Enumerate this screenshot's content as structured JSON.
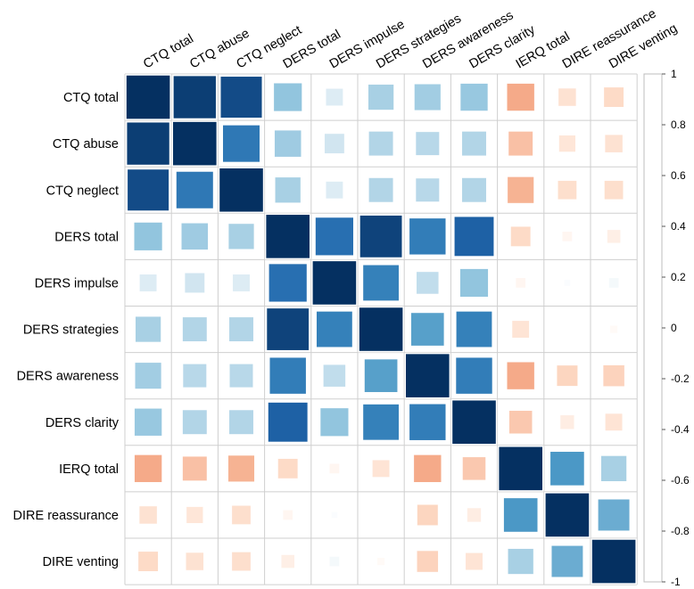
{
  "chart_data": {
    "type": "heatmap",
    "style": "correlation-matrix-squares",
    "variables": [
      "CTQ total",
      "CTQ abuse",
      "CTQ neglect",
      "DERS total",
      "DERS impulse",
      "DERS strategies",
      "DERS awareness",
      "DERS clarity",
      "IERQ total",
      "DIRE reassurance",
      "DIRE venting"
    ],
    "matrix": [
      [
        1.0,
        0.95,
        0.9,
        0.4,
        0.15,
        0.33,
        0.35,
        0.38,
        -0.38,
        -0.16,
        -0.2
      ],
      [
        0.95,
        1.0,
        0.72,
        0.36,
        0.2,
        0.3,
        0.28,
        0.3,
        -0.3,
        -0.14,
        -0.16
      ],
      [
        0.9,
        0.72,
        1.0,
        0.33,
        0.15,
        0.3,
        0.28,
        0.3,
        -0.35,
        -0.18,
        -0.18
      ],
      [
        0.4,
        0.36,
        0.33,
        1.0,
        0.76,
        0.93,
        0.7,
        0.82,
        -0.2,
        -0.05,
        -0.09
      ],
      [
        0.15,
        0.2,
        0.15,
        0.76,
        1.0,
        0.68,
        0.25,
        0.4,
        -0.05,
        0.02,
        0.05
      ],
      [
        0.33,
        0.3,
        0.3,
        0.93,
        0.68,
        1.0,
        0.55,
        0.68,
        -0.15,
        0.0,
        -0.03
      ],
      [
        0.35,
        0.28,
        0.28,
        0.7,
        0.25,
        0.55,
        1.0,
        0.7,
        -0.38,
        -0.22,
        -0.23
      ],
      [
        0.38,
        0.3,
        0.3,
        0.82,
        0.4,
        0.68,
        0.7,
        1.0,
        -0.27,
        -0.1,
        -0.15
      ],
      [
        -0.38,
        -0.3,
        -0.35,
        -0.2,
        -0.05,
        -0.15,
        -0.38,
        -0.27,
        1.0,
        0.58,
        0.33
      ],
      [
        -0.16,
        -0.14,
        -0.18,
        -0.05,
        0.02,
        0.0,
        -0.22,
        -0.1,
        0.58,
        1.0,
        0.5
      ],
      [
        -0.2,
        -0.16,
        -0.18,
        -0.09,
        0.05,
        -0.03,
        -0.23,
        -0.15,
        0.33,
        0.5,
        1.0
      ]
    ],
    "colorbar": {
      "range": [
        -1,
        1
      ],
      "ticks": [
        "1",
        "0.8",
        "0.6",
        "0.4",
        "0.2",
        "0",
        "-0.2",
        "-0.4",
        "-0.6",
        "-0.8",
        "-1"
      ],
      "tick_values": [
        1,
        0.8,
        0.6,
        0.4,
        0.2,
        0,
        -0.2,
        -0.4,
        -0.6,
        -0.8,
        -1
      ],
      "colors": {
        "neg_strong": "#67001f",
        "neg_mid": "#d6604d",
        "neg_light": "#fddbc7",
        "zero": "#ffffff",
        "pos_light": "#d1e5f0",
        "pos_mid": "#4393c3",
        "pos_strong": "#053061"
      }
    },
    "xlabel": "",
    "ylabel": "",
    "title": ""
  }
}
